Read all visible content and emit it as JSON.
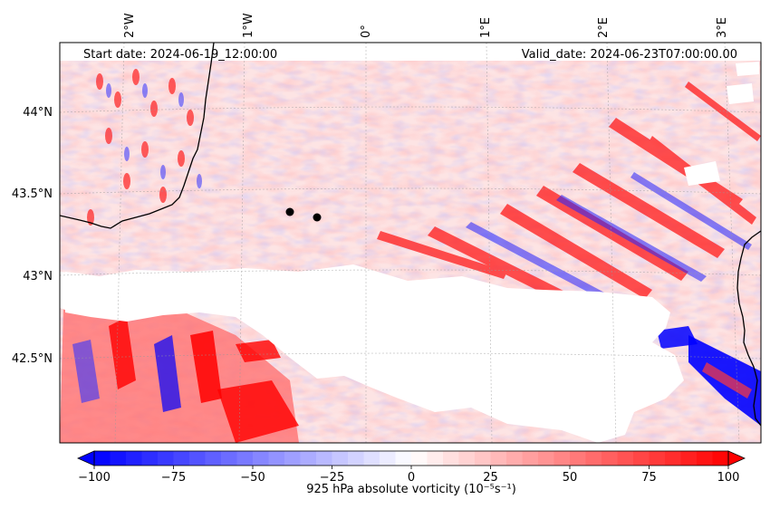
{
  "header": {
    "start_date": "Start date: 2024-06-19_12:00:00",
    "valid_date": "Valid_date: 2024-06-23T07:00:00.00"
  },
  "axes": {
    "lon_labels": [
      "2°W",
      "1°W",
      "0°",
      "1°E",
      "2°E",
      "3°E"
    ],
    "lat_labels": [
      "44°N",
      "43.5°N",
      "43°N",
      "42.5°N"
    ],
    "lon_values": [
      -2,
      -1,
      0,
      1,
      2,
      3
    ],
    "lat_values": [
      44,
      43.5,
      43,
      42.5
    ]
  },
  "colorbar": {
    "label": "925 hPa absolute vorticity (10⁻⁵s⁻¹)",
    "ticks": [
      "−100",
      "−75",
      "−50",
      "−25",
      "0",
      "25",
      "50",
      "75",
      "100"
    ],
    "tick_values": [
      -100,
      -75,
      -50,
      -25,
      0,
      25,
      50,
      75,
      100
    ],
    "min": -100,
    "max": 100,
    "colors": [
      "#0000ff",
      "#ffffff",
      "#ff0000"
    ]
  },
  "markers": [
    {
      "name": "station-marker-1"
    },
    {
      "name": "station-marker-2"
    }
  ],
  "map": {
    "field": "925 hPa absolute vorticity",
    "mask_region": "Pyrenees terrain (below-ground masked)"
  }
}
